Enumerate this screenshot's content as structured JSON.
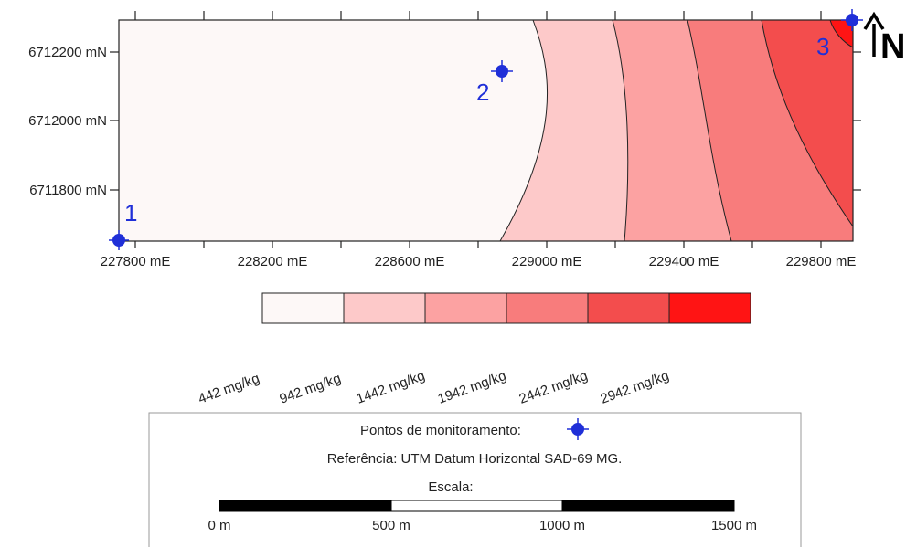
{
  "map": {
    "x_ticks": [
      "227800 mE",
      "228200 mE",
      "228600 mE",
      "229000 mE",
      "229400 mE",
      "229800 mE"
    ],
    "y_ticks": [
      "6712200 mN",
      "6712000 mN",
      "6711800 mN"
    ],
    "north_label": "N",
    "points": [
      {
        "label": "1",
        "easting": 227770,
        "northing": 6711660
      },
      {
        "label": "2",
        "easting": 228890,
        "northing": 6712140
      },
      {
        "label": "3",
        "easting": 229890,
        "northing": 6712290
      }
    ]
  },
  "legend": {
    "colors": [
      "#fdf8f7",
      "#fdc9c9",
      "#fca2a2",
      "#f87c7c",
      "#f34d4d",
      "#ff1414"
    ],
    "values": [
      "442 mg/kg",
      "942 mg/kg",
      "1442 mg/kg",
      "1942 mg/kg",
      "2442 mg/kg",
      "2942 mg/kg"
    ]
  },
  "info": {
    "monitoring_points_label": "Pontos de monitoramento:",
    "reference_text": "Referência: UTM Datum Horizontal SAD-69 MG.",
    "scale_title": "Escala:",
    "scale_labels": [
      "0 m",
      "500 m",
      "1000 m",
      "1500 m"
    ]
  }
}
